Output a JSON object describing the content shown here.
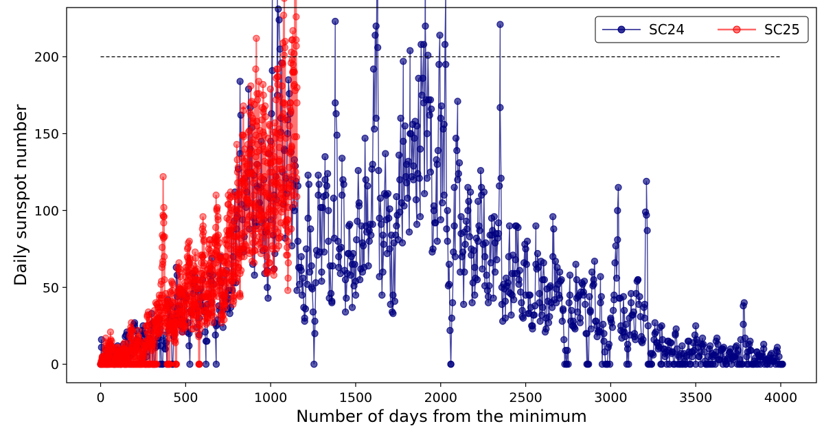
{
  "chart_data": {
    "type": "line",
    "title": "",
    "xlabel": "Number of days from the minimum",
    "ylabel": "Daily sunspot number",
    "xlim": [
      -200,
      4210
    ],
    "ylim": [
      -12,
      232
    ],
    "xticks": [
      0,
      500,
      1000,
      1500,
      2000,
      2500,
      3000,
      3500,
      4000
    ],
    "yticks": [
      0,
      50,
      100,
      150,
      200
    ],
    "grid": false,
    "legend": {
      "placement": "top-right",
      "columns": 2
    },
    "reference_line": {
      "y": 200,
      "x_start": 0,
      "x_end": 4000,
      "style": "dashed",
      "color": "#000000"
    },
    "series": [
      {
        "name": "SC24",
        "color": "#000080",
        "marker": "circle",
        "x_start": 0,
        "x_end": 4010,
        "step_days": 5,
        "points": [
          [
            0,
            0
          ],
          [
            5,
            11
          ],
          [
            10,
            0
          ],
          [
            20,
            3
          ],
          [
            30,
            9
          ],
          [
            40,
            0
          ],
          [
            60,
            5
          ],
          [
            80,
            2
          ],
          [
            100,
            12
          ],
          [
            120,
            0
          ],
          [
            150,
            19
          ],
          [
            180,
            6
          ],
          [
            200,
            25
          ],
          [
            220,
            13
          ],
          [
            250,
            20
          ],
          [
            270,
            8
          ],
          [
            300,
            33
          ],
          [
            330,
            14
          ],
          [
            350,
            23
          ],
          [
            380,
            10
          ],
          [
            400,
            38
          ],
          [
            430,
            22
          ],
          [
            450,
            58
          ],
          [
            470,
            30
          ],
          [
            500,
            45
          ],
          [
            520,
            20
          ],
          [
            550,
            52
          ],
          [
            580,
            30
          ],
          [
            600,
            38
          ],
          [
            620,
            15
          ],
          [
            650,
            54
          ],
          [
            680,
            25
          ],
          [
            700,
            55
          ],
          [
            720,
            35
          ],
          [
            750,
            48
          ],
          [
            780,
            70
          ],
          [
            800,
            88
          ],
          [
            820,
            137
          ],
          [
            840,
            75
          ],
          [
            860,
            112
          ],
          [
            880,
            140
          ],
          [
            900,
            95
          ],
          [
            920,
            130
          ],
          [
            940,
            100
          ],
          [
            960,
            120
          ],
          [
            980,
            50
          ],
          [
            1000,
            145
          ],
          [
            1010,
            191
          ],
          [
            1020,
            110
          ],
          [
            1040,
            175
          ],
          [
            1060,
            160
          ],
          [
            1080,
            140
          ],
          [
            1100,
            150
          ],
          [
            1120,
            120
          ],
          [
            1140,
            100
          ],
          [
            1160,
            80
          ],
          [
            1180,
            70
          ],
          [
            1200,
            30
          ],
          [
            1220,
            95
          ],
          [
            1240,
            50
          ],
          [
            1260,
            20
          ],
          [
            1280,
            110
          ],
          [
            1300,
            60
          ],
          [
            1320,
            120
          ],
          [
            1340,
            80
          ],
          [
            1360,
            40
          ],
          [
            1380,
            170
          ],
          [
            1400,
            70
          ],
          [
            1420,
            110
          ],
          [
            1440,
            55
          ],
          [
            1460,
            90
          ],
          [
            1480,
            65
          ],
          [
            1500,
            45
          ],
          [
            1520,
            105
          ],
          [
            1540,
            60
          ],
          [
            1560,
            120
          ],
          [
            1580,
            80
          ],
          [
            1600,
            130
          ],
          [
            1620,
            160
          ],
          [
            1630,
            206
          ],
          [
            1640,
            95
          ],
          [
            1660,
            60
          ],
          [
            1680,
            110
          ],
          [
            1700,
            75
          ],
          [
            1720,
            45
          ],
          [
            1740,
            90
          ],
          [
            1760,
            120
          ],
          [
            1780,
            145
          ],
          [
            1800,
            130
          ],
          [
            1820,
            150
          ],
          [
            1840,
            120
          ],
          [
            1860,
            155
          ],
          [
            1880,
            140
          ],
          [
            1900,
            170
          ],
          [
            1910,
            220
          ],
          [
            1920,
            150
          ],
          [
            1940,
            125
          ],
          [
            1960,
            100
          ],
          [
            1980,
            130
          ],
          [
            2000,
            160
          ],
          [
            2020,
            110
          ],
          [
            2030,
            195
          ],
          [
            2040,
            100
          ],
          [
            2050,
            65
          ],
          [
            2060,
            0
          ],
          [
            2080,
            90
          ],
          [
            2100,
            120
          ],
          [
            2120,
            85
          ],
          [
            2140,
            60
          ],
          [
            2160,
            100
          ],
          [
            2180,
            75
          ],
          [
            2200,
            45
          ],
          [
            2220,
            80
          ],
          [
            2240,
            110
          ],
          [
            2260,
            70
          ],
          [
            2280,
            40
          ],
          [
            2300,
            95
          ],
          [
            2320,
            60
          ],
          [
            2340,
            85
          ],
          [
            2350,
            167
          ],
          [
            2360,
            50
          ],
          [
            2380,
            30
          ],
          [
            2400,
            70
          ],
          [
            2420,
            45
          ],
          [
            2440,
            90
          ],
          [
            2460,
            55
          ],
          [
            2480,
            35
          ],
          [
            2500,
            75
          ],
          [
            2520,
            45
          ],
          [
            2540,
            25
          ],
          [
            2560,
            65
          ],
          [
            2580,
            40
          ],
          [
            2600,
            55
          ],
          [
            2620,
            30
          ],
          [
            2640,
            50
          ],
          [
            2660,
            70
          ],
          [
            2680,
            40
          ],
          [
            2700,
            60
          ],
          [
            2720,
            35
          ],
          [
            2740,
            0
          ],
          [
            2760,
            45
          ],
          [
            2780,
            25
          ],
          [
            2800,
            55
          ],
          [
            2820,
            30
          ],
          [
            2840,
            45
          ],
          [
            2860,
            20
          ],
          [
            2880,
            35
          ],
          [
            2900,
            55
          ],
          [
            2920,
            25
          ],
          [
            2940,
            40
          ],
          [
            2960,
            15
          ],
          [
            2980,
            0
          ],
          [
            3000,
            30
          ],
          [
            3020,
            45
          ],
          [
            3040,
            100
          ],
          [
            3060,
            25
          ],
          [
            3080,
            35
          ],
          [
            3100,
            10
          ],
          [
            3120,
            40
          ],
          [
            3140,
            20
          ],
          [
            3160,
            55
          ],
          [
            3180,
            15
          ],
          [
            3200,
            30
          ],
          [
            3210,
            119
          ],
          [
            3220,
            25
          ],
          [
            3240,
            0
          ],
          [
            3260,
            20
          ],
          [
            3280,
            10
          ],
          [
            3300,
            25
          ],
          [
            3320,
            5
          ],
          [
            3340,
            15
          ],
          [
            3360,
            8
          ],
          [
            3380,
            20
          ],
          [
            3400,
            5
          ],
          [
            3420,
            12
          ],
          [
            3440,
            0
          ],
          [
            3460,
            15
          ],
          [
            3480,
            8
          ],
          [
            3500,
            25
          ],
          [
            3520,
            5
          ],
          [
            3540,
            12
          ],
          [
            3560,
            0
          ],
          [
            3580,
            10
          ],
          [
            3600,
            5
          ],
          [
            3620,
            15
          ],
          [
            3640,
            3
          ],
          [
            3660,
            10
          ],
          [
            3680,
            0
          ],
          [
            3700,
            8
          ],
          [
            3720,
            5
          ],
          [
            3740,
            12
          ],
          [
            3760,
            3
          ],
          [
            3780,
            38
          ],
          [
            3800,
            5
          ],
          [
            3820,
            15
          ],
          [
            3840,
            0
          ],
          [
            3860,
            8
          ],
          [
            3880,
            3
          ],
          [
            3900,
            10
          ],
          [
            3920,
            0
          ],
          [
            3940,
            6
          ],
          [
            3960,
            2
          ],
          [
            3980,
            8
          ],
          [
            4000,
            0
          ],
          [
            4010,
            0
          ]
        ]
      },
      {
        "name": "SC25",
        "color": "#ff0000",
        "marker": "circle",
        "x_start": 0,
        "x_end": 1155,
        "step_days": 1,
        "points": [
          [
            0,
            0
          ],
          [
            10,
            5
          ],
          [
            20,
            0
          ],
          [
            30,
            12
          ],
          [
            40,
            3
          ],
          [
            60,
            16
          ],
          [
            80,
            0
          ],
          [
            100,
            8
          ],
          [
            120,
            4
          ],
          [
            140,
            10
          ],
          [
            160,
            2
          ],
          [
            180,
            20
          ],
          [
            200,
            5
          ],
          [
            220,
            18
          ],
          [
            240,
            0
          ],
          [
            260,
            15
          ],
          [
            280,
            25
          ],
          [
            300,
            10
          ],
          [
            320,
            28
          ],
          [
            340,
            30
          ],
          [
            360,
            45
          ],
          [
            370,
            96
          ],
          [
            380,
            35
          ],
          [
            400,
            25
          ],
          [
            420,
            40
          ],
          [
            440,
            20
          ],
          [
            460,
            50
          ],
          [
            480,
            30
          ],
          [
            500,
            42
          ],
          [
            520,
            60
          ],
          [
            540,
            38
          ],
          [
            560,
            55
          ],
          [
            580,
            25
          ],
          [
            600,
            70
          ],
          [
            620,
            35
          ],
          [
            640,
            60
          ],
          [
            660,
            45
          ],
          [
            680,
            80
          ],
          [
            700,
            55
          ],
          [
            720,
            40
          ],
          [
            740,
            70
          ],
          [
            760,
            85
          ],
          [
            780,
            60
          ],
          [
            800,
            100
          ],
          [
            820,
            75
          ],
          [
            840,
            120
          ],
          [
            860,
            90
          ],
          [
            880,
            130
          ],
          [
            900,
            110
          ],
          [
            920,
            155
          ],
          [
            940,
            100
          ],
          [
            960,
            140
          ],
          [
            980,
            90
          ],
          [
            1000,
            130
          ],
          [
            1020,
            100
          ],
          [
            1040,
            150
          ],
          [
            1060,
            110
          ],
          [
            1080,
            170
          ],
          [
            1100,
            80
          ],
          [
            1120,
            140
          ],
          [
            1140,
            190
          ],
          [
            1150,
            211
          ],
          [
            1155,
            170
          ]
        ]
      }
    ]
  }
}
